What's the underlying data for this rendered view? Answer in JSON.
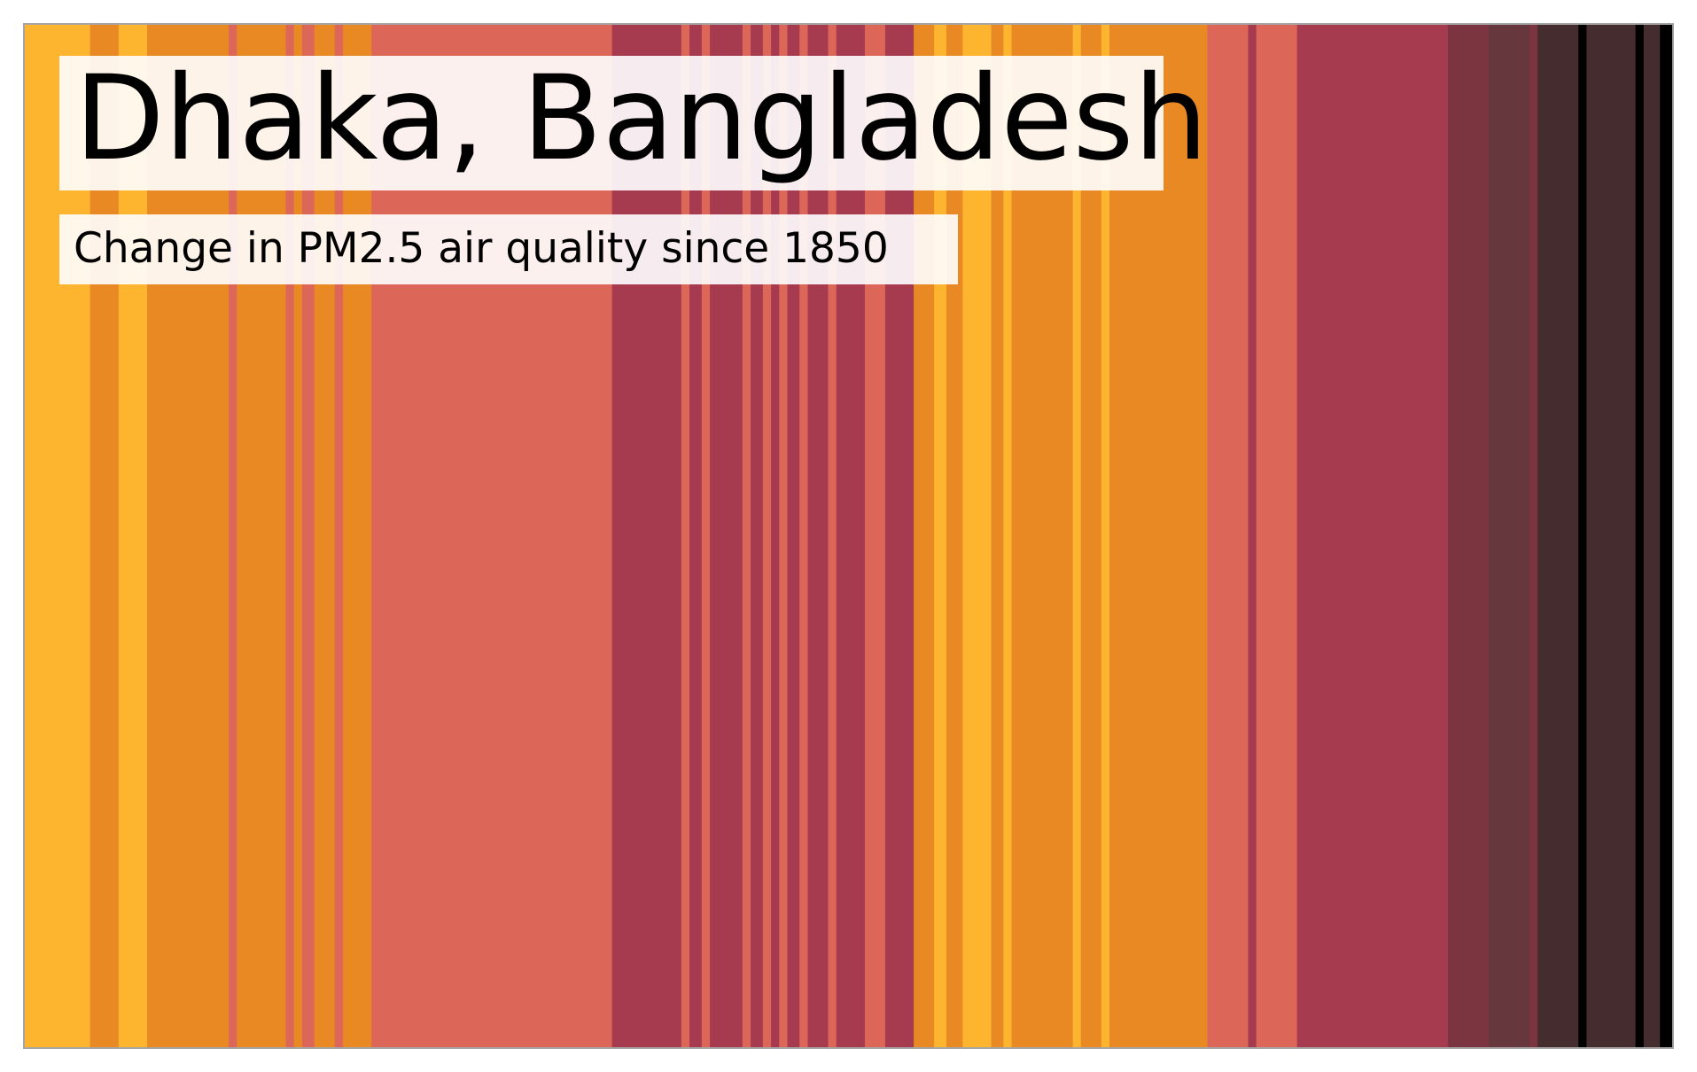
{
  "chart_data": {
    "type": "heatmap",
    "title": "Dhaka, Bangladesh",
    "subtitle": "Change in PM2.5 air quality since 1850",
    "grid": false,
    "palette": [
      "#FDB42E",
      "#E88924",
      "#DC6759",
      "#A63B50",
      "#7B3541",
      "#66373C",
      "#452C2F",
      "#000000"
    ],
    "stripes": [
      {
        "level": 0,
        "years": 16
      },
      {
        "level": 1,
        "years": 7
      },
      {
        "level": 0,
        "years": 7
      },
      {
        "level": 1,
        "years": 20
      },
      {
        "level": 2,
        "years": 2
      },
      {
        "level": 1,
        "years": 12
      },
      {
        "level": 2,
        "years": 2
      },
      {
        "level": 1,
        "years": 2
      },
      {
        "level": 2,
        "years": 3
      },
      {
        "level": 1,
        "years": 5
      },
      {
        "level": 2,
        "years": 2
      },
      {
        "level": 1,
        "years": 7
      },
      {
        "level": 2,
        "years": 59
      },
      {
        "level": 3,
        "years": 17
      },
      {
        "level": 2,
        "years": 2
      },
      {
        "level": 3,
        "years": 3
      },
      {
        "level": 2,
        "years": 2
      },
      {
        "level": 3,
        "years": 8
      },
      {
        "level": 2,
        "years": 2
      },
      {
        "level": 3,
        "years": 3
      },
      {
        "level": 2,
        "years": 2
      },
      {
        "level": 3,
        "years": 2
      },
      {
        "level": 2,
        "years": 2
      },
      {
        "level": 3,
        "years": 3
      },
      {
        "level": 2,
        "years": 2
      },
      {
        "level": 3,
        "years": 5
      },
      {
        "level": 2,
        "years": 2
      },
      {
        "level": 3,
        "years": 7
      },
      {
        "level": 2,
        "years": 5
      },
      {
        "level": 3,
        "years": 7
      },
      {
        "level": 1,
        "years": 5
      },
      {
        "level": 0,
        "years": 3
      },
      {
        "level": 1,
        "years": 4
      },
      {
        "level": 0,
        "years": 7
      },
      {
        "level": 1,
        "years": 3
      },
      {
        "level": 0,
        "years": 2
      },
      {
        "level": 1,
        "years": 15
      },
      {
        "level": 0,
        "years": 2
      },
      {
        "level": 1,
        "years": 5
      },
      {
        "level": 0,
        "years": 2
      },
      {
        "level": 1,
        "years": 24
      },
      {
        "level": 2,
        "years": 10
      },
      {
        "level": 3,
        "years": 2
      },
      {
        "level": 2,
        "years": 10
      },
      {
        "level": 3,
        "years": 37
      },
      {
        "level": 4,
        "years": 10
      },
      {
        "level": 5,
        "years": 10
      },
      {
        "level": 4,
        "years": 2
      },
      {
        "level": 6,
        "years": 10
      },
      {
        "level": 7,
        "years": 2
      },
      {
        "level": 6,
        "years": 12
      },
      {
        "level": 7,
        "years": 2
      },
      {
        "level": 6,
        "years": 4
      },
      {
        "level": 7,
        "years": 3
      }
    ]
  }
}
